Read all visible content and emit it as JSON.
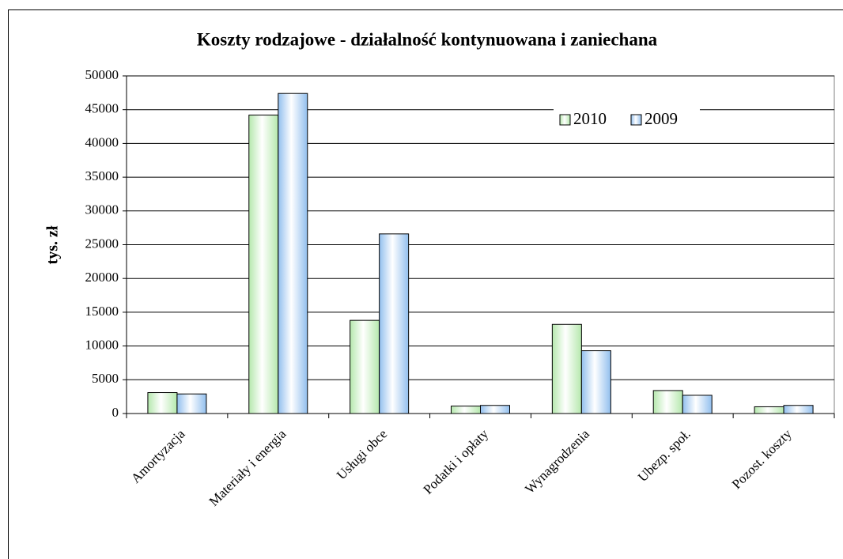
{
  "chart_data": {
    "type": "bar",
    "title": "Koszty rodzajowe - działalność kontynuowana i zaniechana",
    "y_label": "tys. zł",
    "categories": [
      "Amortyzacja",
      "Materiały i energia",
      "Usługi obce",
      "Podatki i opłaty",
      "Wynagrodzenia",
      "Ubezp. społ.",
      "Pozost. koszty"
    ],
    "series": [
      {
        "name": "2010",
        "color": "#b5e8ad",
        "values": [
          3100,
          44200,
          13800,
          1100,
          13200,
          3400,
          1000
        ]
      },
      {
        "name": "2009",
        "color": "#92bfee",
        "values": [
          2900,
          47400,
          26600,
          1200,
          9300,
          2700,
          1200
        ]
      }
    ],
    "ylim": [
      0,
      50000
    ],
    "yticks": [
      0,
      5000,
      10000,
      15000,
      20000,
      25000,
      30000,
      35000,
      40000,
      45000,
      50000
    ],
    "grid": true,
    "legend": "top-right"
  }
}
